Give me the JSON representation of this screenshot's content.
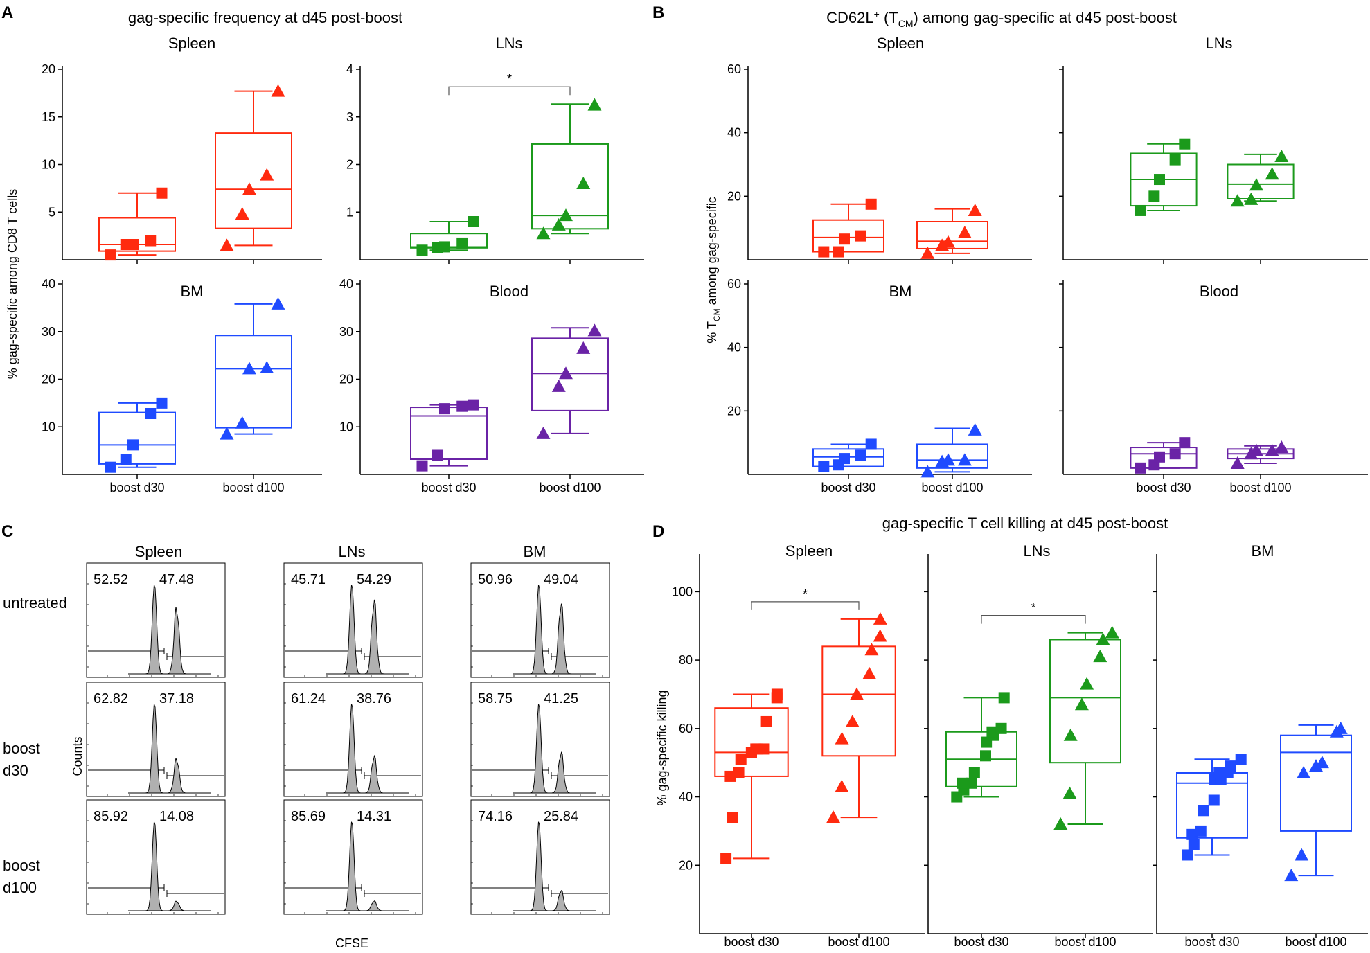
{
  "panel_letters": [
    "A",
    "B",
    "C",
    "D"
  ],
  "colors": {
    "red": "#FF2A0F",
    "green": "#1B9A1B",
    "blue": "#1F4BFF",
    "purple": "#6A23A6",
    "axis": "#000000",
    "gray": "#B0B0B0"
  },
  "panelA": {
    "title": "gag-specific frequency at d45 post-boost",
    "ylabel": "% gag-specific among CD8 T cells",
    "group_labels": [
      "boost d30",
      "boost d100"
    ]
  },
  "panelB": {
    "title_prefix": "CD62L",
    "title_sup": "+",
    "title_mid": " (T",
    "title_sub": "CM",
    "title_suffix": ") among gag-specific at d45 post-boost",
    "ylabel_prefix": "% T",
    "ylabel_sub": "CM",
    "ylabel_suffix": " among gag-specific",
    "group_labels": [
      "boost d30",
      "boost d100"
    ]
  },
  "panelC": {
    "columns": [
      "Spleen",
      "LNs",
      "BM"
    ],
    "rows": [
      "untreated",
      "boost\nd30",
      "boost\nd100"
    ],
    "ylabel": "Counts",
    "xlabel": "CFSE",
    "values": [
      [
        [
          "52.52",
          "47.48"
        ],
        [
          "45.71",
          "54.29"
        ],
        [
          "50.96",
          "49.04"
        ]
      ],
      [
        [
          "62.82",
          "37.18"
        ],
        [
          "61.24",
          "38.76"
        ],
        [
          "58.75",
          "41.25"
        ]
      ],
      [
        [
          "85.92",
          "14.08"
        ],
        [
          "85.69",
          "14.31"
        ],
        [
          "74.16",
          "25.84"
        ]
      ]
    ]
  },
  "panelD": {
    "title": "gag-specific T cell killing at d45 post-boost",
    "ylabel": "% gag-specific killing",
    "group_labels": [
      "boost d30",
      "boost d100"
    ]
  },
  "chart_data": [
    {
      "id": "A-spleen",
      "type": "box",
      "title": "Spleen",
      "color": "red",
      "ylim": [
        0,
        20
      ],
      "yticks": [
        5,
        10,
        15,
        20
      ],
      "categories": [
        "boost d30",
        "boost d100"
      ],
      "boxes": [
        {
          "min": 0.5,
          "q1": 0.9,
          "median": 1.6,
          "q3": 4.4,
          "max": 7.0,
          "points": [
            0.5,
            1.6,
            1.6,
            2.0,
            7.0
          ],
          "marker": "square"
        },
        {
          "min": 1.5,
          "q1": 3.3,
          "median": 7.4,
          "q3": 13.3,
          "max": 17.7,
          "points": [
            1.5,
            4.8,
            7.4,
            8.9,
            17.7
          ],
          "marker": "triangle"
        }
      ]
    },
    {
      "id": "A-lns",
      "type": "box",
      "title": "LNs",
      "color": "green",
      "ylim": [
        0,
        4
      ],
      "yticks": [
        1,
        2,
        3,
        4
      ],
      "categories": [
        "boost d30",
        "boost d100"
      ],
      "significance": "*",
      "boxes": [
        {
          "min": 0.2,
          "q1": 0.25,
          "median": 0.27,
          "q3": 0.55,
          "max": 0.8,
          "points": [
            0.2,
            0.25,
            0.27,
            0.35,
            0.8
          ],
          "marker": "square"
        },
        {
          "min": 0.55,
          "q1": 0.65,
          "median": 0.93,
          "q3": 2.43,
          "max": 3.27,
          "points": [
            0.55,
            0.73,
            0.93,
            1.6,
            3.25
          ],
          "marker": "triangle"
        }
      ]
    },
    {
      "id": "A-bm",
      "type": "box",
      "title": "BM",
      "color": "blue",
      "ylim": [
        0,
        40
      ],
      "yticks": [
        10,
        20,
        30,
        40
      ],
      "categories": [
        "boost d30",
        "boost d100"
      ],
      "boxes": [
        {
          "min": 1.5,
          "q1": 2.2,
          "median": 6.2,
          "q3": 13.0,
          "max": 15.0,
          "points": [
            1.5,
            3.2,
            6.2,
            12.8,
            15.0
          ],
          "marker": "square"
        },
        {
          "min": 8.5,
          "q1": 9.8,
          "median": 22.2,
          "q3": 29.2,
          "max": 35.8,
          "points": [
            8.5,
            10.8,
            22.2,
            22.4,
            35.8
          ],
          "marker": "triangle"
        }
      ]
    },
    {
      "id": "A-blood",
      "type": "box",
      "title": "Blood",
      "color": "purple",
      "ylim": [
        0,
        40
      ],
      "yticks": [
        10,
        20,
        30,
        40
      ],
      "categories": [
        "boost d30",
        "boost d100"
      ],
      "boxes": [
        {
          "min": 1.8,
          "q1": 3.2,
          "median": 12.3,
          "q3": 14.1,
          "max": 14.6,
          "points": [
            1.8,
            4.0,
            13.8,
            14.3,
            14.6
          ],
          "marker": "square"
        },
        {
          "min": 8.6,
          "q1": 13.4,
          "median": 21.2,
          "q3": 28.6,
          "max": 30.8,
          "points": [
            8.6,
            18.5,
            21.2,
            26.5,
            30.2
          ],
          "marker": "triangle"
        }
      ]
    },
    {
      "id": "B-spleen",
      "type": "box",
      "title": "Spleen",
      "color": "red",
      "ylim": [
        0,
        60
      ],
      "yticks": [
        20,
        40,
        60
      ],
      "categories": [
        "boost d30",
        "boost d100"
      ],
      "boxes": [
        {
          "min": 2.5,
          "q1": 2.5,
          "median": 7.0,
          "q3": 12.5,
          "max": 17.5,
          "points": [
            2.5,
            2.5,
            6.5,
            7.5,
            17.5
          ],
          "marker": "square"
        },
        {
          "min": 2.0,
          "q1": 3.5,
          "median": 5.8,
          "q3": 12.0,
          "max": 16.0,
          "points": [
            2.0,
            4.5,
            5.5,
            8.5,
            15.5
          ],
          "marker": "triangle"
        }
      ]
    },
    {
      "id": "B-lns",
      "type": "box",
      "title": "LNs",
      "color": "green",
      "ylim": [
        0,
        60
      ],
      "yticks": [
        20,
        40,
        60
      ],
      "categories": [
        "boost d30",
        "boost d100"
      ],
      "boxes": [
        {
          "min": 15.5,
          "q1": 17.0,
          "median": 25.3,
          "q3": 33.5,
          "max": 36.5,
          "points": [
            15.5,
            20.0,
            25.3,
            31.5,
            36.5
          ],
          "marker": "square"
        },
        {
          "min": 18.5,
          "q1": 19.2,
          "median": 23.8,
          "q3": 30.0,
          "max": 33.2,
          "points": [
            18.5,
            19.0,
            23.5,
            27.0,
            32.5
          ],
          "marker": "triangle"
        }
      ]
    },
    {
      "id": "B-bm",
      "type": "box",
      "title": "BM",
      "color": "blue",
      "ylim": [
        0,
        60
      ],
      "yticks": [
        20,
        40,
        60
      ],
      "categories": [
        "boost d30",
        "boost d100"
      ],
      "boxes": [
        {
          "min": 2.5,
          "q1": 2.5,
          "median": 5.5,
          "q3": 8.0,
          "max": 9.5,
          "points": [
            2.5,
            3.0,
            5.0,
            6.0,
            9.5
          ],
          "marker": "square"
        },
        {
          "min": 0.8,
          "q1": 2.0,
          "median": 4.5,
          "q3": 9.5,
          "max": 14.5,
          "points": [
            0.8,
            4.0,
            4.5,
            4.5,
            14.0
          ],
          "marker": "triangle"
        }
      ]
    },
    {
      "id": "B-blood",
      "type": "box",
      "title": "Blood",
      "color": "purple",
      "ylim": [
        0,
        60
      ],
      "yticks": [
        20,
        40,
        60
      ],
      "categories": [
        "boost d30",
        "boost d100"
      ],
      "boxes": [
        {
          "min": 2.0,
          "q1": 2.0,
          "median": 6.5,
          "q3": 8.5,
          "max": 10.0,
          "points": [
            2.0,
            3.0,
            5.5,
            6.5,
            10.0
          ],
          "marker": "square"
        },
        {
          "min": 3.5,
          "q1": 5.0,
          "median": 6.5,
          "q3": 8.0,
          "max": 9.0,
          "points": [
            3.5,
            6.5,
            7.5,
            7.5,
            8.5
          ],
          "marker": "triangle"
        }
      ]
    },
    {
      "id": "D-spleen",
      "type": "box",
      "title": "Spleen",
      "color": "red",
      "ylim": [
        0,
        110
      ],
      "yticks": [
        20,
        40,
        60,
        80,
        100
      ],
      "categories": [
        "boost d30",
        "boost d100"
      ],
      "significance": "*",
      "boxes": [
        {
          "min": 22,
          "q1": 46,
          "median": 53,
          "q3": 66,
          "max": 70,
          "points": [
            22,
            34,
            46,
            47,
            51,
            53,
            53,
            54,
            54,
            54,
            62,
            69,
            70
          ],
          "marker": "square"
        },
        {
          "min": 34,
          "q1": 52,
          "median": 70,
          "q3": 84,
          "max": 92,
          "points": [
            34,
            43,
            57,
            62,
            70,
            76,
            83,
            87,
            92
          ],
          "marker": "triangle"
        }
      ]
    },
    {
      "id": "D-lns",
      "type": "box",
      "title": "LNs",
      "color": "green",
      "ylim": [
        0,
        110
      ],
      "yticks": [
        20,
        40,
        60,
        80,
        100
      ],
      "categories": [
        "boost d30",
        "boost d100"
      ],
      "significance": "*",
      "boxes": [
        {
          "min": 40,
          "q1": 43,
          "median": 51,
          "q3": 59,
          "max": 69,
          "points": [
            40,
            42,
            44,
            44,
            47,
            52,
            56,
            58,
            59,
            60,
            69
          ],
          "marker": "square"
        },
        {
          "min": 32,
          "q1": 50,
          "median": 69,
          "q3": 86,
          "max": 88,
          "points": [
            32,
            41,
            58,
            67,
            73,
            81,
            86,
            88
          ],
          "marker": "triangle"
        }
      ]
    },
    {
      "id": "D-bm",
      "type": "box",
      "title": "BM",
      "color": "blue",
      "ylim": [
        0,
        110
      ],
      "yticks": [
        20,
        40,
        60,
        80,
        100
      ],
      "categories": [
        "boost d30",
        "boost d100"
      ],
      "boxes": [
        {
          "min": 23,
          "q1": 28,
          "median": 44,
          "q3": 47,
          "max": 51,
          "points": [
            23,
            26,
            29,
            30,
            36,
            39,
            45,
            45,
            47,
            47,
            49,
            51
          ],
          "marker": "square"
        },
        {
          "min": 17,
          "q1": 30,
          "median": 53,
          "q3": 58,
          "max": 61,
          "points": [
            17,
            23,
            47,
            49,
            50,
            59,
            60
          ],
          "marker": "triangle"
        }
      ]
    }
  ]
}
